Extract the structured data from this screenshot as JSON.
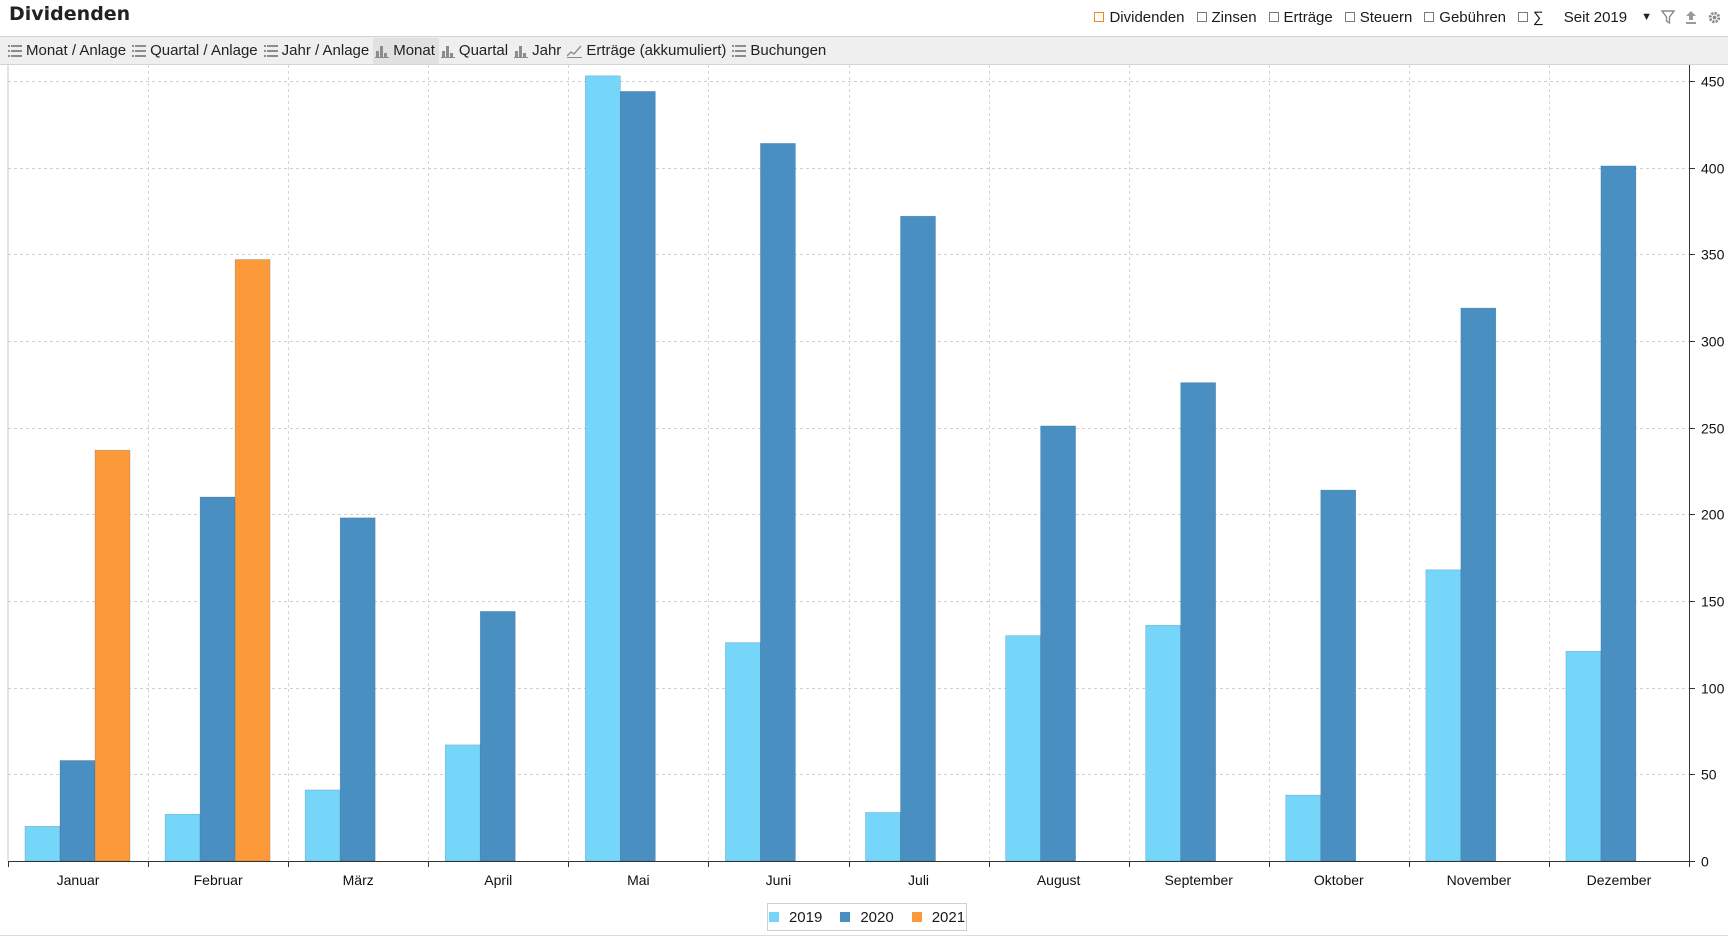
{
  "header": {
    "title": "Dividenden",
    "filters": [
      {
        "label": "Dividenden",
        "checked": true
      },
      {
        "label": "Zinsen",
        "checked": false
      },
      {
        "label": "Erträge",
        "checked": false
      },
      {
        "label": "Steuern",
        "checked": false
      },
      {
        "label": "Gebühren",
        "checked": false
      },
      {
        "label": "∑",
        "checked": false
      }
    ],
    "since": "Seit 2019",
    "icons": [
      "filter-icon",
      "export-icon",
      "settings-icon"
    ]
  },
  "tabs": [
    {
      "label": "Monat / Anlage",
      "icon": "list-icon",
      "active": false
    },
    {
      "label": "Quartal / Anlage",
      "icon": "list-icon",
      "active": false
    },
    {
      "label": "Jahr / Anlage",
      "icon": "list-icon",
      "active": false
    },
    {
      "label": "Monat",
      "icon": "bar-chart-icon",
      "active": true
    },
    {
      "label": "Quartal",
      "icon": "bar-chart-icon",
      "active": false
    },
    {
      "label": "Jahr",
      "icon": "bar-chart-icon",
      "active": false
    },
    {
      "label": "Erträge (akkumuliert)",
      "icon": "line-chart-icon",
      "active": false
    },
    {
      "label": "Buchungen",
      "icon": "list-icon",
      "active": false
    }
  ],
  "chart_data": {
    "type": "bar",
    "title": "",
    "xlabel": "",
    "ylabel": "",
    "categories": [
      "Januar",
      "Februar",
      "März",
      "April",
      "Mai",
      "Juni",
      "Juli",
      "August",
      "September",
      "Oktober",
      "November",
      "Dezember"
    ],
    "series": [
      {
        "name": "2019",
        "color": "#75d6fa",
        "values": [
          20,
          27,
          41,
          67,
          453,
          126,
          28,
          130,
          136,
          38,
          168,
          121
        ]
      },
      {
        "name": "2020",
        "color": "#4a8fc2",
        "values": [
          58,
          210,
          198,
          144,
          444,
          414,
          372,
          251,
          276,
          214,
          319,
          401
        ]
      },
      {
        "name": "2021",
        "color": "#fc9a3a",
        "values": [
          237,
          347,
          null,
          null,
          null,
          null,
          null,
          null,
          null,
          null,
          null,
          null
        ]
      }
    ],
    "ylim": [
      0,
      450
    ],
    "yticks": [
      "0",
      "50",
      "100",
      "150",
      "200",
      "250",
      "300",
      "350",
      "400",
      "450"
    ],
    "y_axis_side": "right",
    "grid": true,
    "legend": "bottom-center"
  }
}
